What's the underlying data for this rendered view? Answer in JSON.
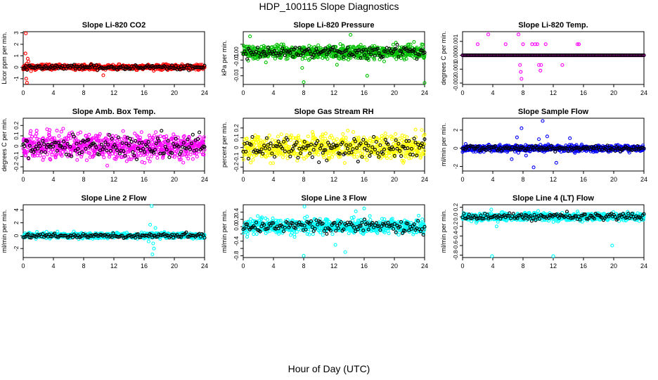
{
  "figure": {
    "title": "HDP_100115  Slope Diagnostics",
    "xlabel": "Hour of Day (UTC)"
  },
  "chart_data": [
    {
      "type": "scatter",
      "title": "Slope Li-820 CO2",
      "ylabel": "Licor ppm per min.",
      "xlim": [
        0,
        24
      ],
      "ylim": [
        -1.5,
        3.1
      ],
      "xticks": [
        0,
        4,
        8,
        12,
        16,
        20,
        24
      ],
      "yticks": [
        -1,
        0,
        1,
        2,
        3
      ],
      "color": "#ff0000",
      "spread": 0.16,
      "seed": 11,
      "outliers": [
        [
          0.35,
          2.95
        ],
        [
          0.4,
          -1.0
        ],
        [
          0.3,
          1.2
        ],
        [
          0.5,
          -1.35
        ],
        [
          0.7,
          0.5
        ],
        [
          10.6,
          -0.7
        ],
        [
          0.6,
          0.75
        ],
        [
          0.45,
          0.3
        ]
      ]
    },
    {
      "type": "scatter",
      "title": "Slope Li-820 Pressure",
      "ylabel": "kPa per min.",
      "xlim": [
        0,
        24
      ],
      "ylim": [
        -0.041,
        0.026
      ],
      "xticks": [
        0,
        4,
        8,
        12,
        16,
        20,
        24
      ],
      "yticks": [
        -0.03,
        -0.02,
        -0.01,
        0.0,
        0.01
      ],
      "ytick_labels": [
        "-0.03",
        "",
        "-0.01",
        "0.00",
        ""
      ],
      "color": "#00c000",
      "spread": 0.006,
      "seed": 22,
      "outliers": [
        [
          0.9,
          0.02
        ],
        [
          8.0,
          -0.038
        ],
        [
          24.0,
          -0.039
        ],
        [
          16.4,
          -0.03
        ],
        [
          14.2,
          0.022
        ],
        [
          7.8,
          -0.02
        ],
        [
          12.4,
          -0.016
        ],
        [
          20.2,
          0.012
        ],
        [
          3.0,
          -0.013
        ],
        [
          22.6,
          0.013
        ]
      ]
    },
    {
      "type": "scatter",
      "title": "Slope Li-820 Temp.",
      "ylabel": "degrees C per min.",
      "xlim": [
        0,
        24
      ],
      "ylim": [
        -0.0021,
        0.0017
      ],
      "xticks": [
        0,
        4,
        8,
        12,
        16,
        20,
        24
      ],
      "yticks": [
        -0.002,
        -0.001,
        0.0,
        0.001
      ],
      "ytick_labels": [
        "-0.002",
        "-0.001",
        "0.000",
        "0.001"
      ],
      "color": "#ff00ff",
      "spread": 0.0,
      "seed": 33,
      "outliers": [
        [
          2.0,
          0.0008
        ],
        [
          3.4,
          0.0015
        ],
        [
          5.7,
          0.0008
        ],
        [
          7.4,
          0.0015
        ],
        [
          7.6,
          -0.0007
        ],
        [
          7.7,
          -0.0012
        ],
        [
          8.0,
          0.0008
        ],
        [
          9.2,
          0.0008
        ],
        [
          9.6,
          0.0008
        ],
        [
          9.9,
          0.0008
        ],
        [
          10.1,
          -0.0007
        ],
        [
          10.4,
          -0.0007
        ],
        [
          11.0,
          0.0008
        ],
        [
          13.2,
          -0.0007
        ],
        [
          15.2,
          0.0008
        ],
        [
          15.4,
          0.0008
        ],
        [
          7.8,
          -0.0017
        ],
        [
          10.3,
          -0.0011
        ]
      ]
    },
    {
      "type": "scatter",
      "title": "Slope Amb. Box Temp.",
      "ylabel": "degrees C per min.",
      "xlim": [
        0,
        24
      ],
      "ylim": [
        -0.24,
        0.27
      ],
      "xticks": [
        0,
        4,
        8,
        12,
        16,
        20,
        24
      ],
      "yticks": [
        -0.2,
        -0.1,
        0.0,
        0.1,
        0.2
      ],
      "color": "#ff00ff",
      "spread": 0.09,
      "seed": 44,
      "outliers": []
    },
    {
      "type": "scatter",
      "title": "Slope Gas Stream RH",
      "ylabel": "percent per min.",
      "xlim": [
        0,
        24
      ],
      "ylim": [
        -0.24,
        0.3
      ],
      "xticks": [
        0,
        4,
        8,
        12,
        16,
        20,
        24
      ],
      "yticks": [
        -0.2,
        -0.1,
        0.0,
        0.1,
        0.2
      ],
      "color": "#ffff00",
      "spread": 0.09,
      "seed": 55,
      "outliers": []
    },
    {
      "type": "scatter",
      "title": "Slope Sample Flow",
      "ylabel": "ml/min per min.",
      "xlim": [
        0,
        24
      ],
      "ylim": [
        -2.5,
        3.3
      ],
      "xticks": [
        0,
        4,
        8,
        12,
        16,
        20,
        24
      ],
      "yticks": [
        -2,
        0,
        2
      ],
      "color": "#0000ff",
      "spread": 0.25,
      "seed": 66,
      "outliers": [
        [
          7.8,
          2.2
        ],
        [
          9.4,
          -2.1
        ],
        [
          10.6,
          3.0
        ],
        [
          11.2,
          1.3
        ],
        [
          12.4,
          -1.6
        ],
        [
          6.5,
          -1.2
        ],
        [
          8.4,
          -0.8
        ],
        [
          10.1,
          1.0
        ],
        [
          7.2,
          1.2
        ],
        [
          14.2,
          1.1
        ]
      ]
    },
    {
      "type": "scatter",
      "title": "Slope Line 2 Flow",
      "ylabel": "ml/min per min.",
      "xlim": [
        0,
        24
      ],
      "ylim": [
        -3.4,
        4.8
      ],
      "xticks": [
        0,
        4,
        8,
        12,
        16,
        20,
        24
      ],
      "yticks": [
        -2,
        0,
        2,
        4
      ],
      "color": "#00ffff",
      "spread": 0.3,
      "seed": 77,
      "outliers": [
        [
          17.0,
          4.6
        ],
        [
          17.3,
          -2.0
        ],
        [
          17.1,
          -2.9
        ],
        [
          16.8,
          1.7
        ],
        [
          17.5,
          1.2
        ],
        [
          17.2,
          -1.2
        ],
        [
          16.6,
          -0.9
        ]
      ]
    },
    {
      "type": "scatter",
      "title": "Slope Line 3 Flow",
      "ylabel": "ml/min per min.",
      "xlim": [
        0,
        24
      ],
      "ylim": [
        -0.85,
        0.6
      ],
      "xticks": [
        0,
        4,
        8,
        12,
        16,
        20,
        24
      ],
      "yticks": [
        -0.8,
        -0.6,
        -0.4,
        -0.2,
        0.0,
        0.2,
        0.4
      ],
      "ytick_labels": [
        "-0.8",
        "",
        "-0.4",
        "",
        "0.0",
        "0.2",
        "0.4"
      ],
      "color": "#00ffff",
      "spread": 0.14,
      "seed": 88,
      "outliers": [
        [
          8.1,
          0.55
        ],
        [
          8.0,
          -0.8
        ],
        [
          13.5,
          -0.7
        ],
        [
          12.2,
          -0.5
        ],
        [
          16.0,
          0.5
        ],
        [
          14.9,
          0.42
        ]
      ]
    },
    {
      "type": "scatter",
      "title": "Slope Line 4 (LT) Flow",
      "ylabel": "ml/min per min.",
      "xlim": [
        0,
        24
      ],
      "ylim": [
        -0.85,
        0.25
      ],
      "xticks": [
        0,
        4,
        8,
        12,
        16,
        20,
        24
      ],
      "yticks": [
        -0.8,
        -0.6,
        -0.4,
        -0.2,
        0.0,
        0.2
      ],
      "ytick_labels": [
        "-0.8",
        "-0.6",
        "-0.4",
        "-0.2",
        "0.0",
        "0.2"
      ],
      "color": "#00ffff",
      "spread": 0.06,
      "seed": 99,
      "outliers": [
        [
          3.9,
          -0.82
        ],
        [
          12.0,
          -0.82
        ],
        [
          19.8,
          -0.6
        ],
        [
          4.5,
          -0.2
        ],
        [
          3.8,
          0.15
        ],
        [
          10.0,
          0.12
        ]
      ]
    }
  ]
}
